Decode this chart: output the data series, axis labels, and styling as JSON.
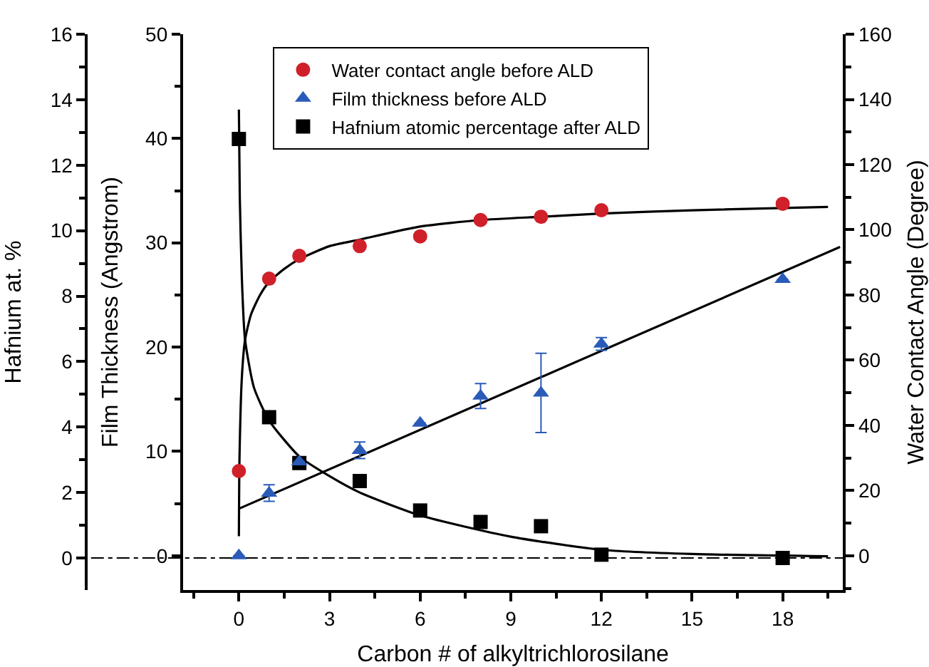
{
  "chart_data": {
    "type": "scatter",
    "xlabel": "Carbon # of alkyltrichlorosilane",
    "ylabel": "Hafnium at. %",
    "y2label": "Water Contact Angle (Degree)",
    "y3label": "Film Thickness (Angstrom)",
    "xlim": [
      -1.85,
      20
    ],
    "xticks": [
      0,
      3,
      6,
      9,
      12,
      15,
      18
    ],
    "ylim": [
      -0.98,
      16
    ],
    "yticks": [
      0,
      2,
      4,
      6,
      8,
      10,
      12,
      14,
      16
    ],
    "y2lim": [
      -10.5,
      160
    ],
    "y2ticks": [
      0,
      20,
      40,
      60,
      80,
      100,
      120,
      140,
      160
    ],
    "y3lim": [
      -3.3,
      50
    ],
    "y3ticks": [
      0,
      10,
      20,
      30,
      40,
      50
    ],
    "legend": "top",
    "grid": false,
    "ref_lines": [
      {
        "axis": "y",
        "value": 0,
        "line_style": "dashdot",
        "color": "#000000"
      }
    ],
    "series": [
      {
        "type": "line",
        "axis": "y2",
        "color": "#000000",
        "x": [
          0,
          0.02,
          0.1,
          0.2,
          0.4,
          0.7,
          1,
          1.5,
          2,
          3,
          4,
          6,
          8,
          10,
          12,
          15,
          19.5
        ],
        "values": [
          6,
          30,
          55,
          66,
          74,
          80,
          84,
          88,
          91,
          95,
          97,
          101,
          103,
          104,
          105,
          106,
          107
        ]
      },
      {
        "type": "line",
        "axis": "y3",
        "color": "#000000",
        "x": [
          0,
          19.9
        ],
        "values": [
          4.5,
          29.6
        ]
      },
      {
        "type": "line",
        "axis": "y",
        "color": "#000000",
        "x": [
          0,
          0.03,
          0.1,
          0.2,
          0.5,
          1,
          2,
          3,
          4,
          6,
          9,
          12,
          15,
          19.5
        ],
        "values": [
          13.7,
          11,
          8.5,
          6.7,
          5.2,
          4.2,
          3.1,
          2.5,
          2.0,
          1.3,
          0.65,
          0.25,
          0.12,
          0.05
        ]
      },
      {
        "name": "Water contact angle before ALD",
        "axis": "y2",
        "marker": "circle",
        "color": "#d0202a",
        "x": [
          0,
          1,
          2,
          4,
          6,
          8,
          10,
          12,
          18
        ],
        "values": [
          26,
          85,
          92,
          95,
          98,
          103,
          104,
          106,
          108
        ]
      },
      {
        "name": "Hafnium atomic percentage after ALD",
        "axis": "y",
        "marker": "square",
        "color": "#000000",
        "x": [
          0,
          1,
          2,
          4,
          6,
          8,
          10,
          12,
          18
        ],
        "values": [
          12.8,
          4.3,
          2.9,
          2.35,
          1.45,
          1.1,
          0.97,
          0.1,
          0
        ]
      },
      {
        "name": "Film thickness before ALD",
        "axis": "y3",
        "marker": "triangle",
        "color": "#2a5bb8",
        "x": [
          0,
          1,
          2,
          4,
          6,
          8,
          10,
          12,
          18
        ],
        "values": [
          0,
          6,
          9,
          10.1,
          12.7,
          15.3,
          15.6,
          20.3,
          26.5
        ],
        "errors": [
          null,
          0.8,
          null,
          0.8,
          null,
          1.2,
          3.8,
          0.6,
          null
        ]
      }
    ]
  }
}
